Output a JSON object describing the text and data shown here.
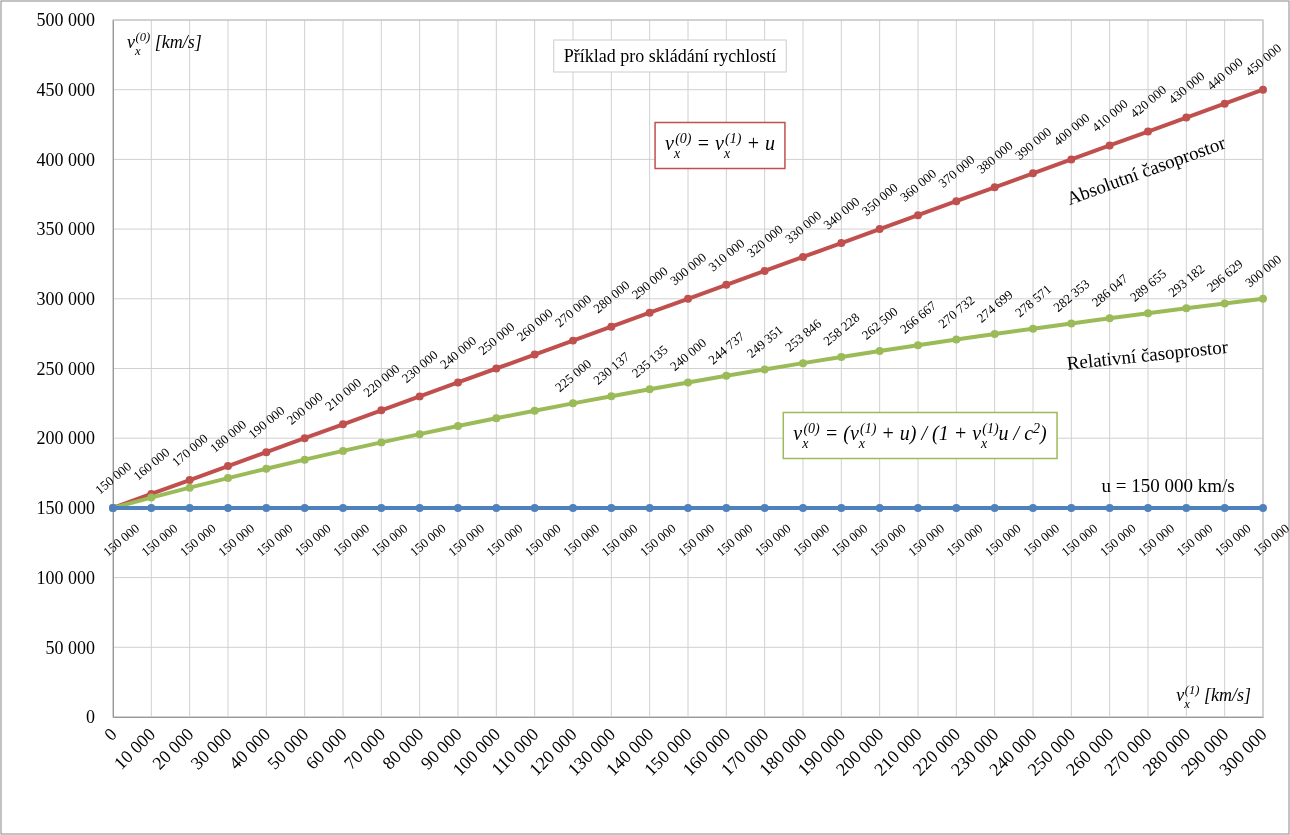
{
  "chart_data": {
    "type": "line",
    "title": "Příklad pro skládání rychlostí",
    "xlabel": "v$_{x}$$^{(1)}$ [km/s]",
    "ylabel": "v$_{x}$$^{(0)}$ [km/s]",
    "x": [
      0,
      10000,
      20000,
      30000,
      40000,
      50000,
      60000,
      70000,
      80000,
      90000,
      100000,
      110000,
      120000,
      130000,
      140000,
      150000,
      160000,
      170000,
      180000,
      190000,
      200000,
      210000,
      220000,
      230000,
      240000,
      250000,
      260000,
      270000,
      280000,
      290000,
      300000
    ],
    "xlim": [
      0,
      300000
    ],
    "xticks": [
      {
        "value": 0,
        "label": "0"
      },
      {
        "value": 10000,
        "label": "10 000"
      },
      {
        "value": 20000,
        "label": "20 000"
      },
      {
        "value": 30000,
        "label": "30 000"
      },
      {
        "value": 40000,
        "label": "40 000"
      },
      {
        "value": 50000,
        "label": "50 000"
      },
      {
        "value": 60000,
        "label": "60 000"
      },
      {
        "value": 70000,
        "label": "70 000"
      },
      {
        "value": 80000,
        "label": "80 000"
      },
      {
        "value": 90000,
        "label": "90 000"
      },
      {
        "value": 100000,
        "label": "100 000"
      },
      {
        "value": 110000,
        "label": "110 000"
      },
      {
        "value": 120000,
        "label": "120 000"
      },
      {
        "value": 130000,
        "label": "130 000"
      },
      {
        "value": 140000,
        "label": "140 000"
      },
      {
        "value": 150000,
        "label": "150 000"
      },
      {
        "value": 160000,
        "label": "160 000"
      },
      {
        "value": 170000,
        "label": "170 000"
      },
      {
        "value": 180000,
        "label": "180 000"
      },
      {
        "value": 190000,
        "label": "190 000"
      },
      {
        "value": 200000,
        "label": "200 000"
      },
      {
        "value": 210000,
        "label": "210 000"
      },
      {
        "value": 220000,
        "label": "220 000"
      },
      {
        "value": 230000,
        "label": "230 000"
      },
      {
        "value": 240000,
        "label": "240 000"
      },
      {
        "value": 250000,
        "label": "250 000"
      },
      {
        "value": 260000,
        "label": "260 000"
      },
      {
        "value": 270000,
        "label": "270 000"
      },
      {
        "value": 280000,
        "label": "280 000"
      },
      {
        "value": 290000,
        "label": "290 000"
      },
      {
        "value": 300000,
        "label": "300 000"
      }
    ],
    "ylim": [
      0,
      500000
    ],
    "yticks": [
      {
        "value": 0,
        "label": "0"
      },
      {
        "value": 50000,
        "label": "50 000"
      },
      {
        "value": 100000,
        "label": "100 000"
      },
      {
        "value": 150000,
        "label": "150 000"
      },
      {
        "value": 200000,
        "label": "200 000"
      },
      {
        "value": 250000,
        "label": "250 000"
      },
      {
        "value": 300000,
        "label": "300 000"
      },
      {
        "value": 350000,
        "label": "350 000"
      },
      {
        "value": 400000,
        "label": "400 000"
      },
      {
        "value": 450000,
        "label": "450 000"
      },
      {
        "value": 500000,
        "label": "500 000"
      }
    ],
    "grid": true,
    "marker": "circle",
    "line_style": "solid",
    "series": [
      {
        "name": "Absolutní časoprostor",
        "color": "#c0504d",
        "values": [
          150000,
          160000,
          170000,
          180000,
          190000,
          200000,
          210000,
          220000,
          230000,
          240000,
          250000,
          260000,
          270000,
          280000,
          290000,
          300000,
          310000,
          320000,
          330000,
          340000,
          350000,
          360000,
          370000,
          380000,
          390000,
          400000,
          410000,
          420000,
          430000,
          440000,
          450000
        ],
        "value_labels": [
          "150 000",
          "160 000",
          "170 000",
          "180 000",
          "190 000",
          "200 000",
          "210 000",
          "220 000",
          "230 000",
          "240 000",
          "250 000",
          "260 000",
          "270 000",
          "280 000",
          "290 000",
          "300 000",
          "310 000",
          "320 000",
          "330 000",
          "340 000",
          "350 000",
          "360 000",
          "370 000",
          "380 000",
          "390 000",
          "400 000",
          "410 000",
          "420 000",
          "430 000",
          "440 000",
          "450 000"
        ]
      },
      {
        "name": "Relativní časoprostor",
        "color": "#9bbb59",
        "values": [
          150000,
          157400,
          164500,
          171400,
          178100,
          184600,
          190900,
          197000,
          202900,
          208700,
          214300,
          219700,
          225000,
          230137,
          235135,
          240000,
          244737,
          249351,
          253846,
          258228,
          262500,
          266667,
          270732,
          274699,
          278571,
          282353,
          286047,
          289655,
          293182,
          296629,
          300000
        ],
        "value_labels": [
          null,
          null,
          null,
          null,
          null,
          null,
          null,
          null,
          null,
          null,
          null,
          null,
          "225 000",
          "230 137",
          "235 135",
          "240 000",
          "244 737",
          "249 351",
          "253 846",
          "258 228",
          "262 500",
          "266 667",
          "270 732",
          "274 699",
          "278 571",
          "282 353",
          "286 047",
          "289 655",
          "293 182",
          "296 629",
          "300 000"
        ]
      },
      {
        "name": "u = 150 000 km/s",
        "color": "#4f81bd",
        "values": [
          150000,
          150000,
          150000,
          150000,
          150000,
          150000,
          150000,
          150000,
          150000,
          150000,
          150000,
          150000,
          150000,
          150000,
          150000,
          150000,
          150000,
          150000,
          150000,
          150000,
          150000,
          150000,
          150000,
          150000,
          150000,
          150000,
          150000,
          150000,
          150000,
          150000,
          150000
        ],
        "value_labels": [
          "150 000",
          "150 000",
          "150 000",
          "150 000",
          "150 000",
          "150 000",
          "150 000",
          "150 000",
          "150 000",
          "150 000",
          "150 000",
          "150 000",
          "150 000",
          "150 000",
          "150 000",
          "150 000",
          "150 000",
          "150 000",
          "150 000",
          "150 000",
          "150 000",
          "150 000",
          "150 000",
          "150 000",
          "150 000",
          "150 000",
          "150 000",
          "150 000",
          "150 000",
          "150 000",
          "150 000"
        ]
      }
    ],
    "annotations": [
      "v$_{x}$$^{(0)}$ = v$_{x}$$^{(1)}$ + u",
      "v$_{x}$$^{(0)}$ = (v$_{x}$$^{(1)}$ + u) / (1 + v$_{x}$$^{(1)}$u / c$^{2}$)"
    ]
  }
}
